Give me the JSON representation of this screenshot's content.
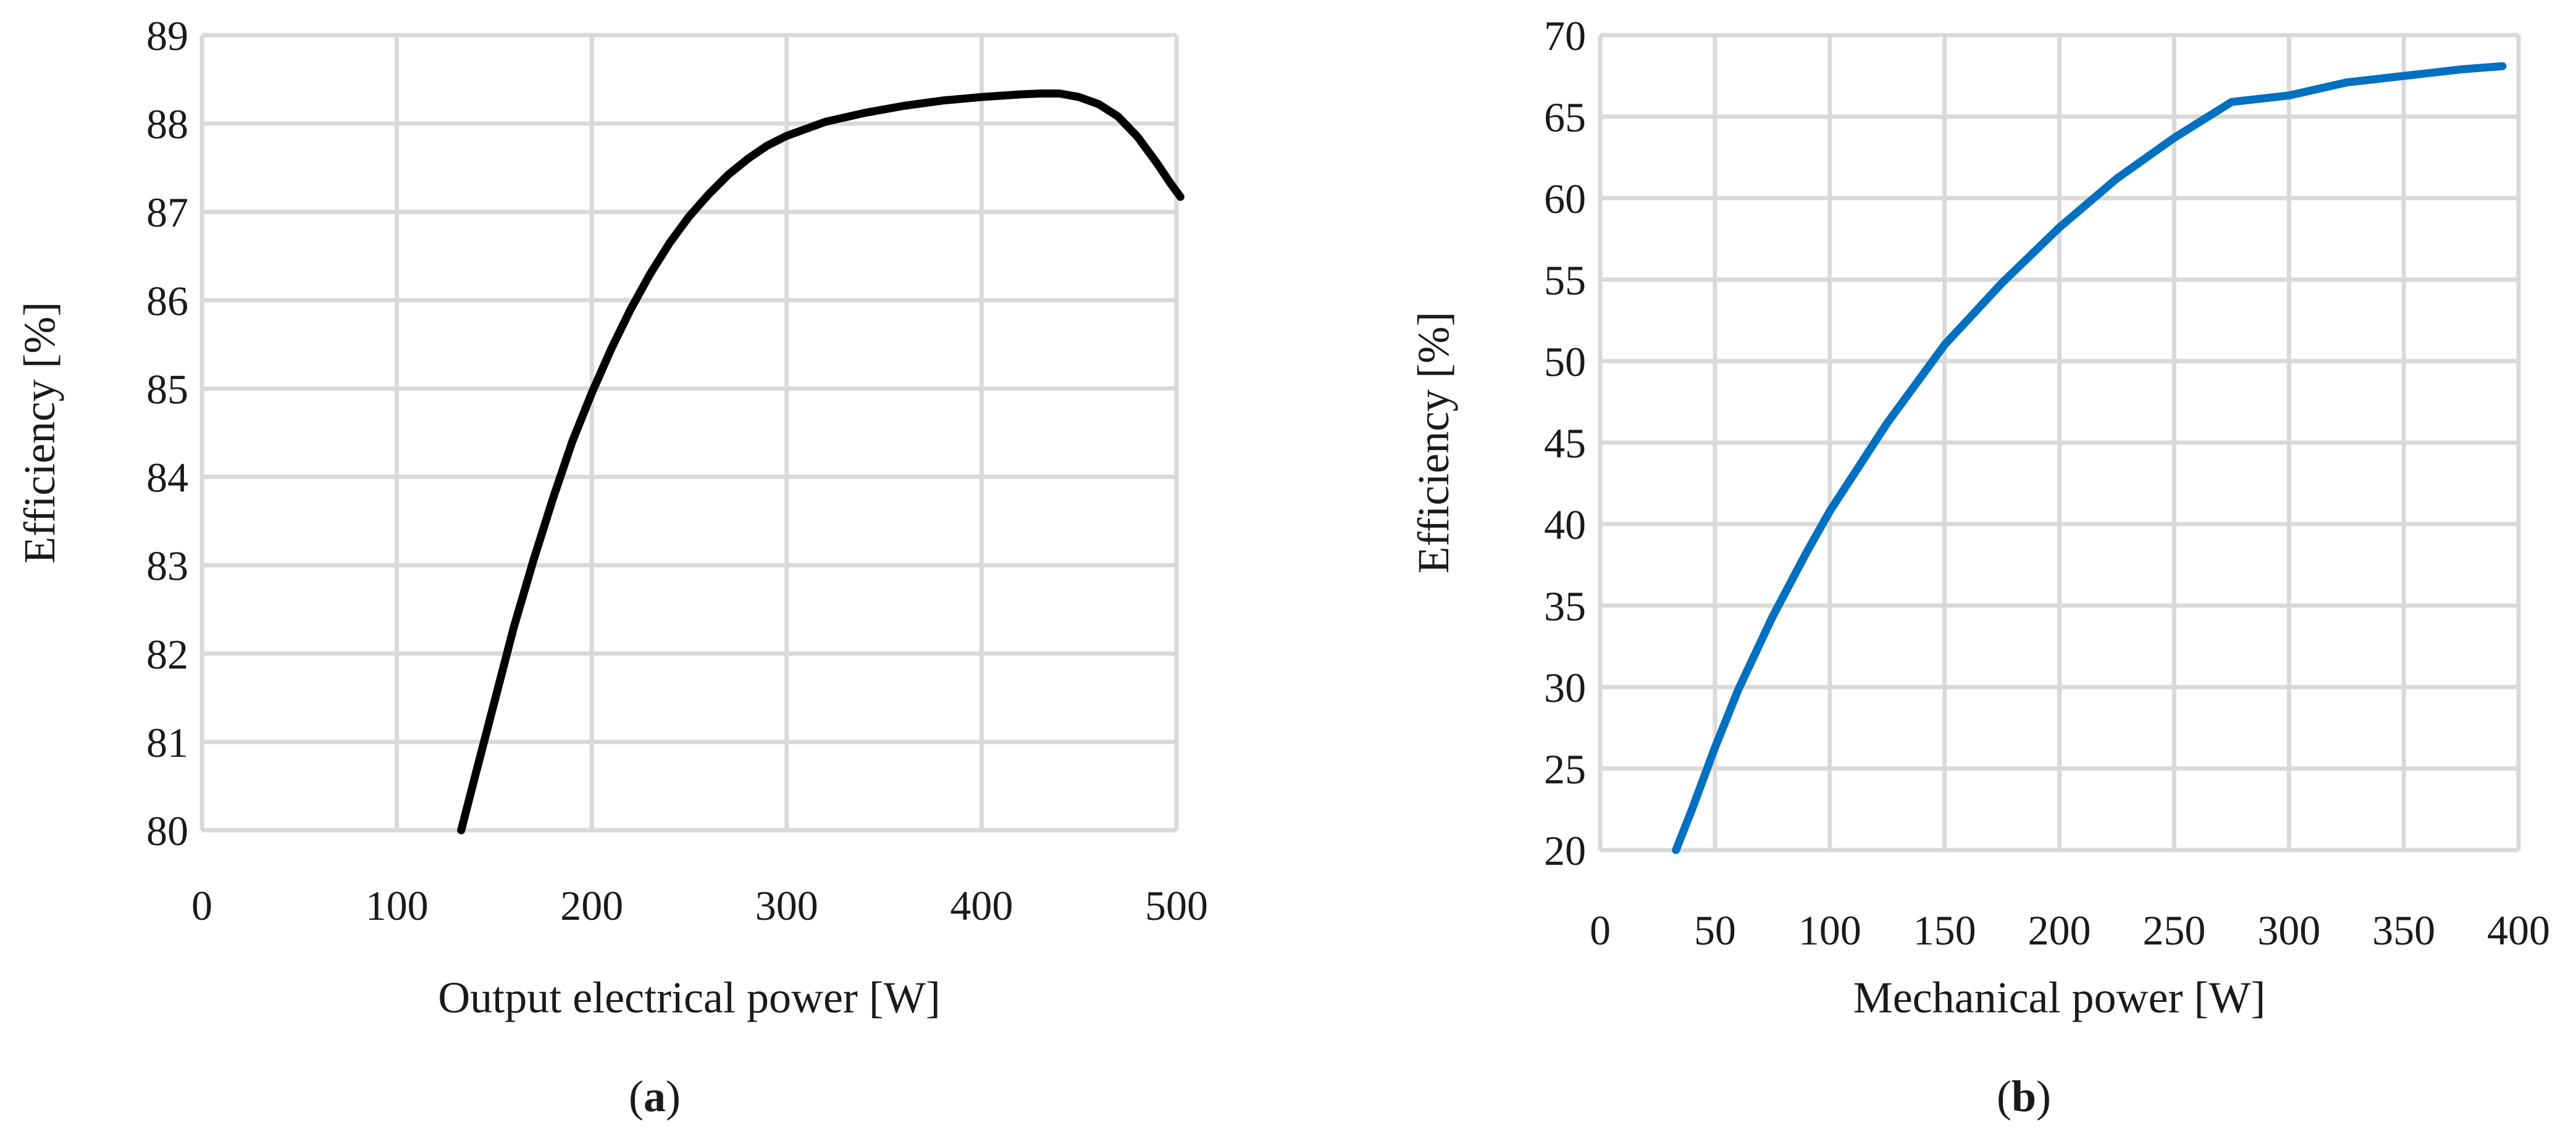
{
  "chart_data": [
    {
      "type": "line",
      "panel_label": "a",
      "xlabel": "Output electrical power [W]",
      "ylabel": "Efficiency [%]",
      "xlim": [
        0,
        500
      ],
      "ylim": [
        80,
        89
      ],
      "x_ticks": [
        0,
        100,
        200,
        300,
        400,
        500
      ],
      "y_ticks": [
        80,
        81,
        82,
        83,
        84,
        85,
        86,
        87,
        88,
        89
      ],
      "grid": true,
      "color": "#000000",
      "series": [
        {
          "name": "Efficiency",
          "x": [
            133,
            140,
            150,
            160,
            170,
            180,
            190,
            200,
            210,
            220,
            230,
            240,
            250,
            260,
            270,
            280,
            290,
            300,
            320,
            340,
            360,
            380,
            400,
            420,
            430,
            440,
            450,
            460,
            470,
            480,
            490,
            497,
            502
          ],
          "y": [
            80.0,
            80.6,
            81.45,
            82.3,
            83.05,
            83.75,
            84.4,
            84.95,
            85.45,
            85.9,
            86.3,
            86.65,
            86.95,
            87.2,
            87.42,
            87.6,
            87.75,
            87.86,
            88.02,
            88.12,
            88.2,
            88.26,
            88.3,
            88.33,
            88.34,
            88.34,
            88.3,
            88.22,
            88.08,
            87.85,
            87.55,
            87.32,
            87.17
          ]
        }
      ]
    },
    {
      "type": "line",
      "panel_label": "b",
      "xlabel": "Mechanical power [W]",
      "ylabel": "Efficiency [%]",
      "xlim": [
        0,
        400
      ],
      "ylim": [
        20,
        70
      ],
      "x_ticks": [
        0,
        50,
        100,
        150,
        200,
        250,
        300,
        350,
        400
      ],
      "y_ticks": [
        20,
        25,
        30,
        35,
        40,
        45,
        50,
        55,
        60,
        65,
        70
      ],
      "grid": true,
      "color": "#0070c0",
      "series": [
        {
          "name": "Efficiency",
          "x": [
            33,
            40,
            50,
            60,
            75,
            90,
            100,
            125,
            150,
            175,
            200,
            225,
            250,
            275,
            300,
            325,
            350,
            375,
            393
          ],
          "y": [
            20.0,
            22.5,
            26.3,
            29.8,
            34.3,
            38.3,
            40.8,
            46.2,
            51.0,
            54.8,
            58.2,
            61.2,
            63.7,
            65.9,
            66.3,
            67.1,
            67.5,
            67.9,
            68.1
          ]
        }
      ]
    }
  ]
}
